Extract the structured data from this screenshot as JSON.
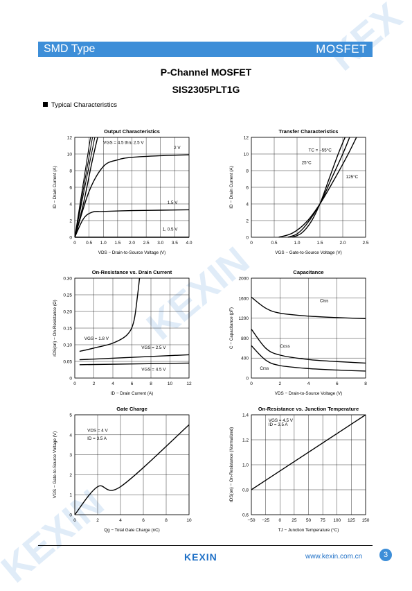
{
  "header": {
    "left": "SMD Type",
    "right": "MOSFET"
  },
  "title": "P-Channel MOSFET",
  "part": "SIS2305PLT1G",
  "section": "Typical Characteristics",
  "footer": {
    "logo": "KEXIN",
    "url": "www.kexin.com.cn",
    "page": "3"
  },
  "chart_data": [
    {
      "type": "line",
      "title": "Output Characteristics",
      "xlabel": "VDS − Drain-to-Source Voltage (V)",
      "ylabel": "ID − Drain Current (A)",
      "xlim": [
        0,
        4
      ],
      "ylim": [
        0,
        12
      ],
      "xticks": [
        "0",
        "0.5",
        "1.0",
        "1.5",
        "2.0",
        "2.5",
        "3.0",
        "3.5",
        "4.0"
      ],
      "yticks": [
        "0",
        "2",
        "4",
        "6",
        "8",
        "10",
        "12"
      ],
      "annotations": [
        "VGS = 4.5 thru 2.5 V",
        "2 V",
        "1.5 V",
        "1, 0.5 V"
      ],
      "series": [
        {
          "name": "VGS = 4.5 thru 2.5 V",
          "x": [
            0,
            0.3,
            0.6,
            0.8
          ],
          "y": [
            0,
            4,
            9,
            12
          ]
        },
        {
          "name": "2 V",
          "x": [
            0,
            0.5,
            1.0,
            1.5,
            2.0,
            3.0,
            4.0
          ],
          "y": [
            0,
            5.5,
            8.5,
            9.3,
            9.6,
            9.8,
            9.9
          ]
        },
        {
          "name": "1.5 V",
          "x": [
            0,
            0.3,
            0.6,
            1.0,
            2.0,
            3.0,
            4.0
          ],
          "y": [
            0,
            2.2,
            3.0,
            3.1,
            3.2,
            3.25,
            3.3
          ]
        },
        {
          "name": "1, 0.5 V",
          "x": [
            0,
            4
          ],
          "y": [
            0,
            0
          ]
        }
      ]
    },
    {
      "type": "line",
      "title": "Transfer Characteristics",
      "xlabel": "VGS − Gate-to-Source Voltage (V)",
      "ylabel": "ID − Drain Current (A)",
      "xlim": [
        0,
        2.5
      ],
      "ylim": [
        0,
        12
      ],
      "xticks": [
        "0",
        "0.5",
        "1.0",
        "1.5",
        "2.0",
        "2.5"
      ],
      "yticks": [
        "0",
        "2",
        "4",
        "6",
        "8",
        "10",
        "12"
      ],
      "annotations": [
        "TC = −55°C",
        "25°C",
        "125°C"
      ],
      "series": [
        {
          "name": "−55°C",
          "x": [
            0.9,
            1.1,
            1.3,
            1.5,
            1.7,
            1.9,
            2.05
          ],
          "y": [
            0,
            0.5,
            1.8,
            4.0,
            7.0,
            10.0,
            12
          ]
        },
        {
          "name": "25°C",
          "x": [
            0.8,
            1.0,
            1.2,
            1.5,
            1.75,
            2.0,
            2.15
          ],
          "y": [
            0,
            0.4,
            1.5,
            4.0,
            7.0,
            10.0,
            12
          ]
        },
        {
          "name": "125°C",
          "x": [
            0.6,
            0.9,
            1.2,
            1.5,
            1.8,
            2.1,
            2.3
          ],
          "y": [
            0,
            0.5,
            1.8,
            4.0,
            6.8,
            9.8,
            12
          ]
        }
      ]
    },
    {
      "type": "line",
      "title": "On-Resistance vs. Drain Current",
      "xlabel": "ID − Drain Current (A)",
      "ylabel": "rDS(on) − On-Resistance (Ω)",
      "xlim": [
        0,
        12
      ],
      "ylim": [
        0,
        0.3
      ],
      "xticks": [
        "0",
        "2",
        "4",
        "6",
        "8",
        "10",
        "12"
      ],
      "yticks": [
        "0",
        "0.05",
        "0.10",
        "0.15",
        "0.20",
        "0.25",
        "0.30"
      ],
      "annotations": [
        "VGS = 1.8 V",
        "VGS = 2.5 V",
        "VGS = 4.5 V"
      ],
      "series": [
        {
          "name": "VGS = 1.8 V",
          "x": [
            0.5,
            2,
            4,
            5.5,
            6.2,
            6.6,
            6.8
          ],
          "y": [
            0.08,
            0.09,
            0.105,
            0.13,
            0.17,
            0.25,
            0.3
          ]
        },
        {
          "name": "VGS = 2.5 V",
          "x": [
            0.5,
            12
          ],
          "y": [
            0.055,
            0.07
          ]
        },
        {
          "name": "VGS = 4.5 V",
          "x": [
            0.5,
            12
          ],
          "y": [
            0.04,
            0.045
          ]
        }
      ]
    },
    {
      "type": "line",
      "title": "Capacitance",
      "xlabel": "VDS − Drain-to-Source Voltage (V)",
      "ylabel": "C − Capacitance (pF)",
      "xlim": [
        0,
        8
      ],
      "ylim": [
        0,
        2000
      ],
      "xticks": [
        "0",
        "2",
        "4",
        "6",
        "8"
      ],
      "yticks": [
        "0",
        "400",
        "800",
        "1200",
        "1600",
        "2000"
      ],
      "annotations": [
        "Ciss",
        "Coss",
        "Crss"
      ],
      "series": [
        {
          "name": "Ciss",
          "x": [
            0,
            1,
            2,
            4,
            6,
            8
          ],
          "y": [
            1620,
            1400,
            1300,
            1240,
            1210,
            1190
          ]
        },
        {
          "name": "Coss",
          "x": [
            0,
            1,
            2,
            4,
            6,
            8
          ],
          "y": [
            980,
            600,
            460,
            370,
            330,
            300
          ]
        },
        {
          "name": "Crss",
          "x": [
            0,
            1,
            2,
            4,
            6,
            8
          ],
          "y": [
            650,
            360,
            250,
            190,
            160,
            140
          ]
        }
      ]
    },
    {
      "type": "line",
      "title": "Gate Charge",
      "xlabel": "Qg − Total Gate Charge (nC)",
      "ylabel": "VGS − Gate-to-Source Voltage (V)",
      "xlim": [
        0,
        10
      ],
      "ylim": [
        0,
        5
      ],
      "xticks": [
        "0",
        "2",
        "4",
        "6",
        "8",
        "10"
      ],
      "yticks": [
        "0",
        "1",
        "2",
        "3",
        "4",
        "5"
      ],
      "annotations": [
        "VDS = 4 V",
        "ID = 3.5 A"
      ],
      "series": [
        {
          "name": "",
          "x": [
            0,
            2,
            4,
            10
          ],
          "y": [
            0,
            1.4,
            1.4,
            4.5
          ]
        }
      ]
    },
    {
      "type": "line",
      "title": "On-Resistance vs. Junction Temperature",
      "xlabel": "TJ − Junction Temperature (°C)",
      "ylabel": "rDS(on) − On-Resistance (Normalized)",
      "xlim": [
        -50,
        150
      ],
      "ylim": [
        0.6,
        1.4
      ],
      "xticks": [
        "−50",
        "−25",
        "0",
        "25",
        "50",
        "75",
        "100",
        "125",
        "150"
      ],
      "yticks": [
        "0.6",
        "0.8",
        "1.0",
        "1.2",
        "1.4"
      ],
      "annotations": [
        "VGS = 4.5 V",
        "ID = 3.5 A"
      ],
      "series": [
        {
          "name": "",
          "x": [
            -50,
            150
          ],
          "y": [
            0.8,
            1.4
          ]
        }
      ]
    }
  ]
}
